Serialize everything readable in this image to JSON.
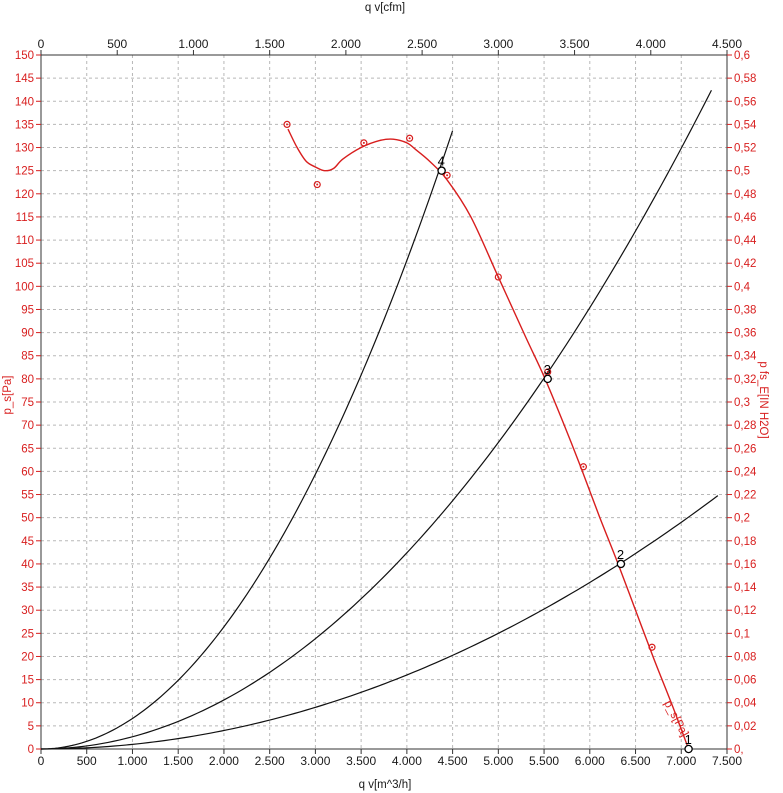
{
  "chart_data": {
    "type": "line",
    "x_axis_bottom": {
      "label": "q v[m^3/h]",
      "range": [
        0,
        7500
      ],
      "tick_labels": [
        "0",
        "500",
        "1.000",
        "1.500",
        "2.000",
        "2.500",
        "3.000",
        "3.500",
        "4.000",
        "4.500",
        "5.000",
        "5.500",
        "6.000",
        "6.500",
        "7.000",
        "7.500"
      ]
    },
    "x_axis_top": {
      "label": "q v[cfm]",
      "range": [
        0,
        4500
      ],
      "tick_labels": [
        "0",
        "500",
        "1.000",
        "1.500",
        "2.000",
        "2.500",
        "3.000",
        "3.500",
        "4.000",
        "4.500"
      ]
    },
    "y_axis_left": {
      "label": "p_s[Pa]",
      "range": [
        0,
        150
      ],
      "tick_labels": [
        "0",
        "5",
        "10",
        "15",
        "20",
        "25",
        "30",
        "35",
        "40",
        "45",
        "50",
        "55",
        "60",
        "65",
        "70",
        "75",
        "80",
        "85",
        "90",
        "95",
        "100",
        "105",
        "110",
        "115",
        "120",
        "125",
        "130",
        "135",
        "140",
        "145",
        "150"
      ]
    },
    "y_axis_right": {
      "label": "p fs_E[IN H2O]",
      "range": [
        0,
        0.6
      ],
      "tick_labels": [
        "0,",
        "0,02",
        "0,04",
        "0,06",
        "0,08",
        "0,1",
        "0,12",
        "0,14",
        "0,16",
        "0,18",
        "0,2",
        "0,22",
        "0,24",
        "0,26",
        "0,28",
        "0,3",
        "0,32",
        "0,34",
        "0,36",
        "0,38",
        "0,4",
        "0,42",
        "0,44",
        "0,46",
        "0,48",
        "0,5",
        "0,52",
        "0,54",
        "0,56",
        "0,58",
        "0,6"
      ]
    },
    "grid": true,
    "fan_curve": {
      "label": "p_s[Pa]",
      "color": "#d81e1e",
      "curve": [
        [
          2700,
          134
        ],
        [
          2800,
          130
        ],
        [
          2900,
          127
        ],
        [
          3000,
          125.8
        ],
        [
          3100,
          125
        ],
        [
          3200,
          125.5
        ],
        [
          3300,
          127.5
        ],
        [
          3500,
          130
        ],
        [
          3700,
          131.5
        ],
        [
          3850,
          131.8
        ],
        [
          4000,
          131
        ],
        [
          4100,
          129.5
        ],
        [
          4250,
          127
        ],
        [
          4440,
          123
        ],
        [
          4700,
          115
        ],
        [
          5000,
          102
        ],
        [
          5300,
          89
        ],
        [
          5500,
          80.5
        ],
        [
          5700,
          71
        ],
        [
          5900,
          61
        ],
        [
          6100,
          50.5
        ],
        [
          6300,
          40.5
        ],
        [
          6500,
          30
        ],
        [
          6700,
          19.5
        ],
        [
          6900,
          9.5
        ],
        [
          7080,
          0
        ]
      ],
      "measured_points": [
        [
          2690,
          135
        ],
        [
          3020,
          122
        ],
        [
          3530,
          131
        ],
        [
          4030,
          132
        ],
        [
          4440,
          124
        ],
        [
          5000,
          102
        ],
        [
          5540,
          81.5
        ],
        [
          5930,
          61
        ],
        [
          6680,
          22
        ],
        [
          7080,
          0
        ]
      ]
    },
    "system_curves": [
      {
        "k": 6.6e-06,
        "x_max": 4500
      },
      {
        "k": 2.65e-06,
        "x_max": 7330
      },
      {
        "k": 1e-06,
        "x_max": 7400
      }
    ],
    "operating_points": [
      {
        "label": "1",
        "x": 7080,
        "y": 0
      },
      {
        "label": "2",
        "x": 6340,
        "y": 40
      },
      {
        "label": "3",
        "x": 5540,
        "y": 80
      },
      {
        "label": "4",
        "x": 4380,
        "y": 125
      }
    ]
  }
}
